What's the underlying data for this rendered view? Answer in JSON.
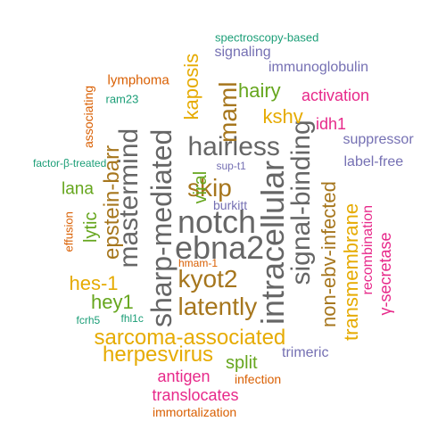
{
  "palette": {
    "green": "#1b9e77",
    "orange": "#d95f02",
    "purple": "#7570b3",
    "magenta": "#e7298a",
    "lime": "#66a61e",
    "mustard": "#e6ab02",
    "brown": "#a6761d",
    "gray": "#666666"
  },
  "words": [
    {
      "text": "notch",
      "color": "#666666"
    },
    {
      "text": "ebna2",
      "color": "#666666"
    },
    {
      "text": "intracellular",
      "color": "#666666"
    },
    {
      "text": "sharp-mediated",
      "color": "#666666"
    },
    {
      "text": "signal-binding",
      "color": "#666666"
    },
    {
      "text": "mastermind",
      "color": "#666666"
    },
    {
      "text": "hairless",
      "color": "#666666"
    },
    {
      "text": "latently",
      "color": "#a6761d"
    },
    {
      "text": "kyot2",
      "color": "#a6761d"
    },
    {
      "text": "skip",
      "color": "#a6761d"
    },
    {
      "text": "maml",
      "color": "#a6761d"
    },
    {
      "text": "epstein-barr",
      "color": "#a6761d"
    },
    {
      "text": "non-ebv-infected",
      "color": "#a6761d"
    },
    {
      "text": "sarcoma-associated",
      "color": "#e6ab02"
    },
    {
      "text": "kaposis",
      "color": "#e6ab02"
    },
    {
      "text": "transmembrane",
      "color": "#e6ab02"
    },
    {
      "text": "herpesvirus",
      "color": "#e6ab02"
    },
    {
      "text": "kshv",
      "color": "#e6ab02"
    },
    {
      "text": "hes-1",
      "color": "#e6ab02"
    },
    {
      "text": "hairy",
      "color": "#66a61e"
    },
    {
      "text": "hey1",
      "color": "#66a61e"
    },
    {
      "text": "lytic",
      "color": "#66a61e"
    },
    {
      "text": "split",
      "color": "#66a61e"
    },
    {
      "text": "viral",
      "color": "#66a61e"
    },
    {
      "text": "lana",
      "color": "#66a61e"
    },
    {
      "text": "γ-secretase",
      "color": "#e7298a"
    },
    {
      "text": "recombination",
      "color": "#e7298a"
    },
    {
      "text": "translocates",
      "color": "#e7298a"
    },
    {
      "text": "activation",
      "color": "#e7298a"
    },
    {
      "text": "antigen",
      "color": "#e7298a"
    },
    {
      "text": "idh1",
      "color": "#e7298a"
    },
    {
      "text": "signaling",
      "color": "#7570b3"
    },
    {
      "text": "immunoglobulin",
      "color": "#7570b3"
    },
    {
      "text": "suppressor",
      "color": "#7570b3"
    },
    {
      "text": "label-free",
      "color": "#7570b3"
    },
    {
      "text": "trimeric",
      "color": "#7570b3"
    },
    {
      "text": "burkitt",
      "color": "#7570b3"
    },
    {
      "text": "sup-t1",
      "color": "#7570b3"
    },
    {
      "text": "lymphoma",
      "color": "#d95f02"
    },
    {
      "text": "infection",
      "color": "#d95f02"
    },
    {
      "text": "immortalization",
      "color": "#d95f02"
    },
    {
      "text": "associating",
      "color": "#d95f02"
    },
    {
      "text": "effusion",
      "color": "#d95f02"
    },
    {
      "text": "hmam-1",
      "color": "#d95f02"
    },
    {
      "text": "spectroscopy-based",
      "color": "#1b9e77"
    },
    {
      "text": "ram23",
      "color": "#1b9e77"
    },
    {
      "text": "factor-β-treated",
      "color": "#1b9e77"
    },
    {
      "text": "fcrh5",
      "color": "#1b9e77"
    },
    {
      "text": "fhl1c",
      "color": "#1b9e77"
    }
  ]
}
